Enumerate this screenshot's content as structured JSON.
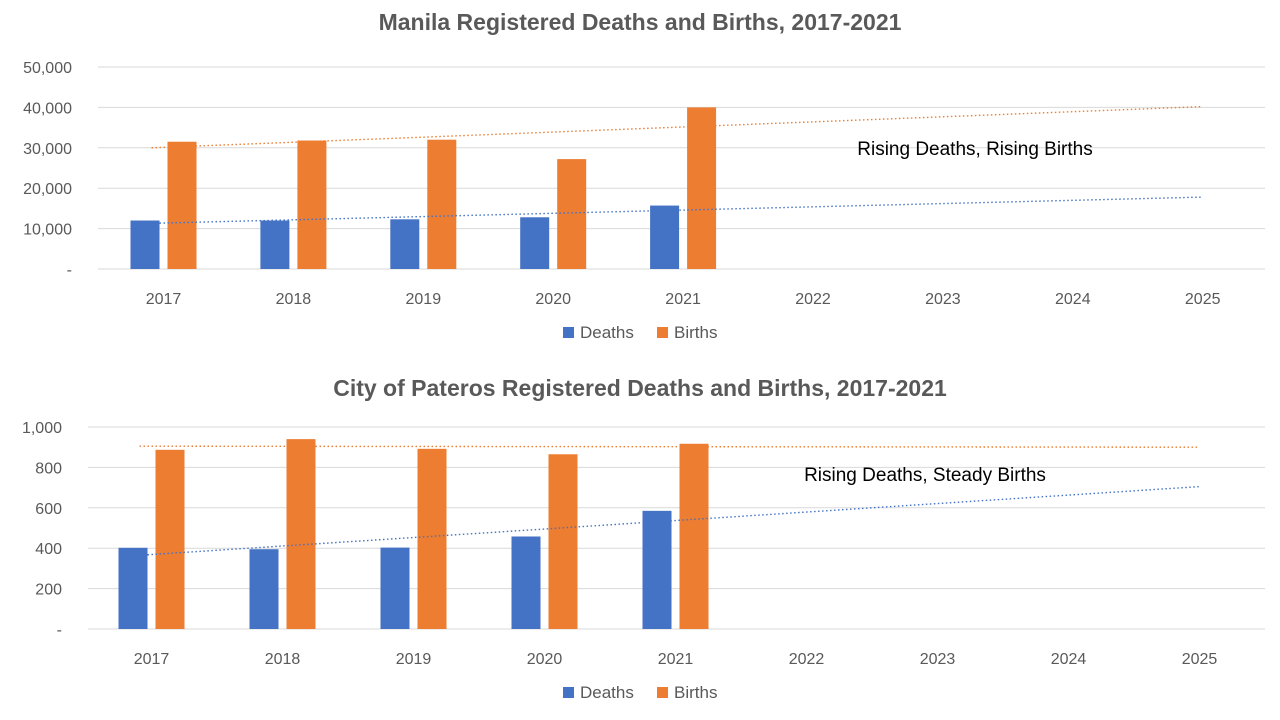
{
  "colors": {
    "deaths": "#4472C4",
    "births": "#ED7D31",
    "grid": "#d9d9d9",
    "text": "#595959"
  },
  "chart_data": [
    {
      "type": "bar",
      "title": "Manila Registered Deaths and Births, 2017-2021",
      "categories": [
        "2017",
        "2018",
        "2019",
        "2020",
        "2021",
        "2022",
        "2023",
        "2024",
        "2025"
      ],
      "series": [
        {
          "name": "Deaths",
          "values": [
            12000,
            12000,
            12300,
            12800,
            15700,
            null,
            null,
            null,
            null
          ]
        },
        {
          "name": "Births",
          "values": [
            31500,
            31800,
            32000,
            27200,
            40000,
            null,
            null,
            null,
            null
          ]
        }
      ],
      "trendlines": [
        {
          "series": "Deaths",
          "start": 11300,
          "end": 17800
        },
        {
          "series": "Births",
          "start": 30000,
          "end": 40200
        }
      ],
      "ylim": [
        0,
        50000
      ],
      "yticks": [
        0,
        10000,
        20000,
        30000,
        40000,
        50000
      ],
      "ytick_labels": [
        "-",
        "10,000",
        "20,000",
        "30,000",
        "40,000",
        "50,000"
      ],
      "annotation": "Rising Deaths, Rising Births",
      "legend": "bottom",
      "grid": true
    },
    {
      "type": "bar",
      "title": "City of Pateros Registered Deaths and Births, 2017-2021",
      "categories": [
        "2017",
        "2018",
        "2019",
        "2020",
        "2021",
        "2022",
        "2023",
        "2024",
        "2025"
      ],
      "series": [
        {
          "name": "Deaths",
          "values": [
            402,
            395,
            403,
            458,
            585,
            null,
            null,
            null,
            null
          ]
        },
        {
          "name": "Births",
          "values": [
            887,
            940,
            892,
            865,
            917,
            null,
            null,
            null,
            null
          ]
        }
      ],
      "trendlines": [
        {
          "series": "Deaths",
          "start": 365,
          "end": 705
        },
        {
          "series": "Births",
          "start": 905,
          "end": 900
        }
      ],
      "ylim": [
        0,
        1000
      ],
      "yticks": [
        0,
        200,
        400,
        600,
        800,
        1000
      ],
      "ytick_labels": [
        "-",
        "200",
        "400",
        "600",
        "800",
        "1,000"
      ],
      "annotation": "Rising Deaths, Steady Births",
      "legend": "bottom",
      "grid": true
    }
  ]
}
